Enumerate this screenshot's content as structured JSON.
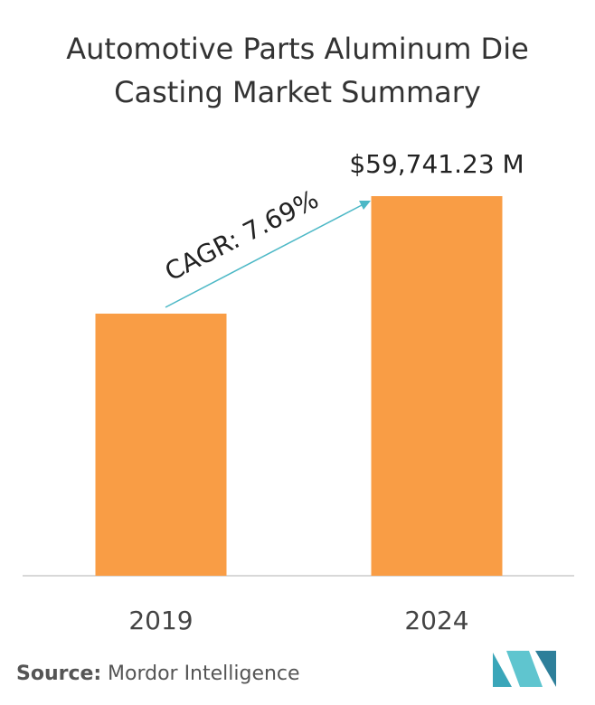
{
  "chart_data": {
    "type": "bar",
    "title": "Automotive Parts Aluminum Die Casting Market Summary",
    "categories": [
      "2019",
      "2024"
    ],
    "values": [
      41250,
      59741.23
    ],
    "value_labels": [
      null,
      "$59,741.23 M"
    ],
    "color": "#f99d45",
    "annotation": "CAGR: 7.69%",
    "source_label": "Source:",
    "source": "Mordor Intelligence"
  }
}
